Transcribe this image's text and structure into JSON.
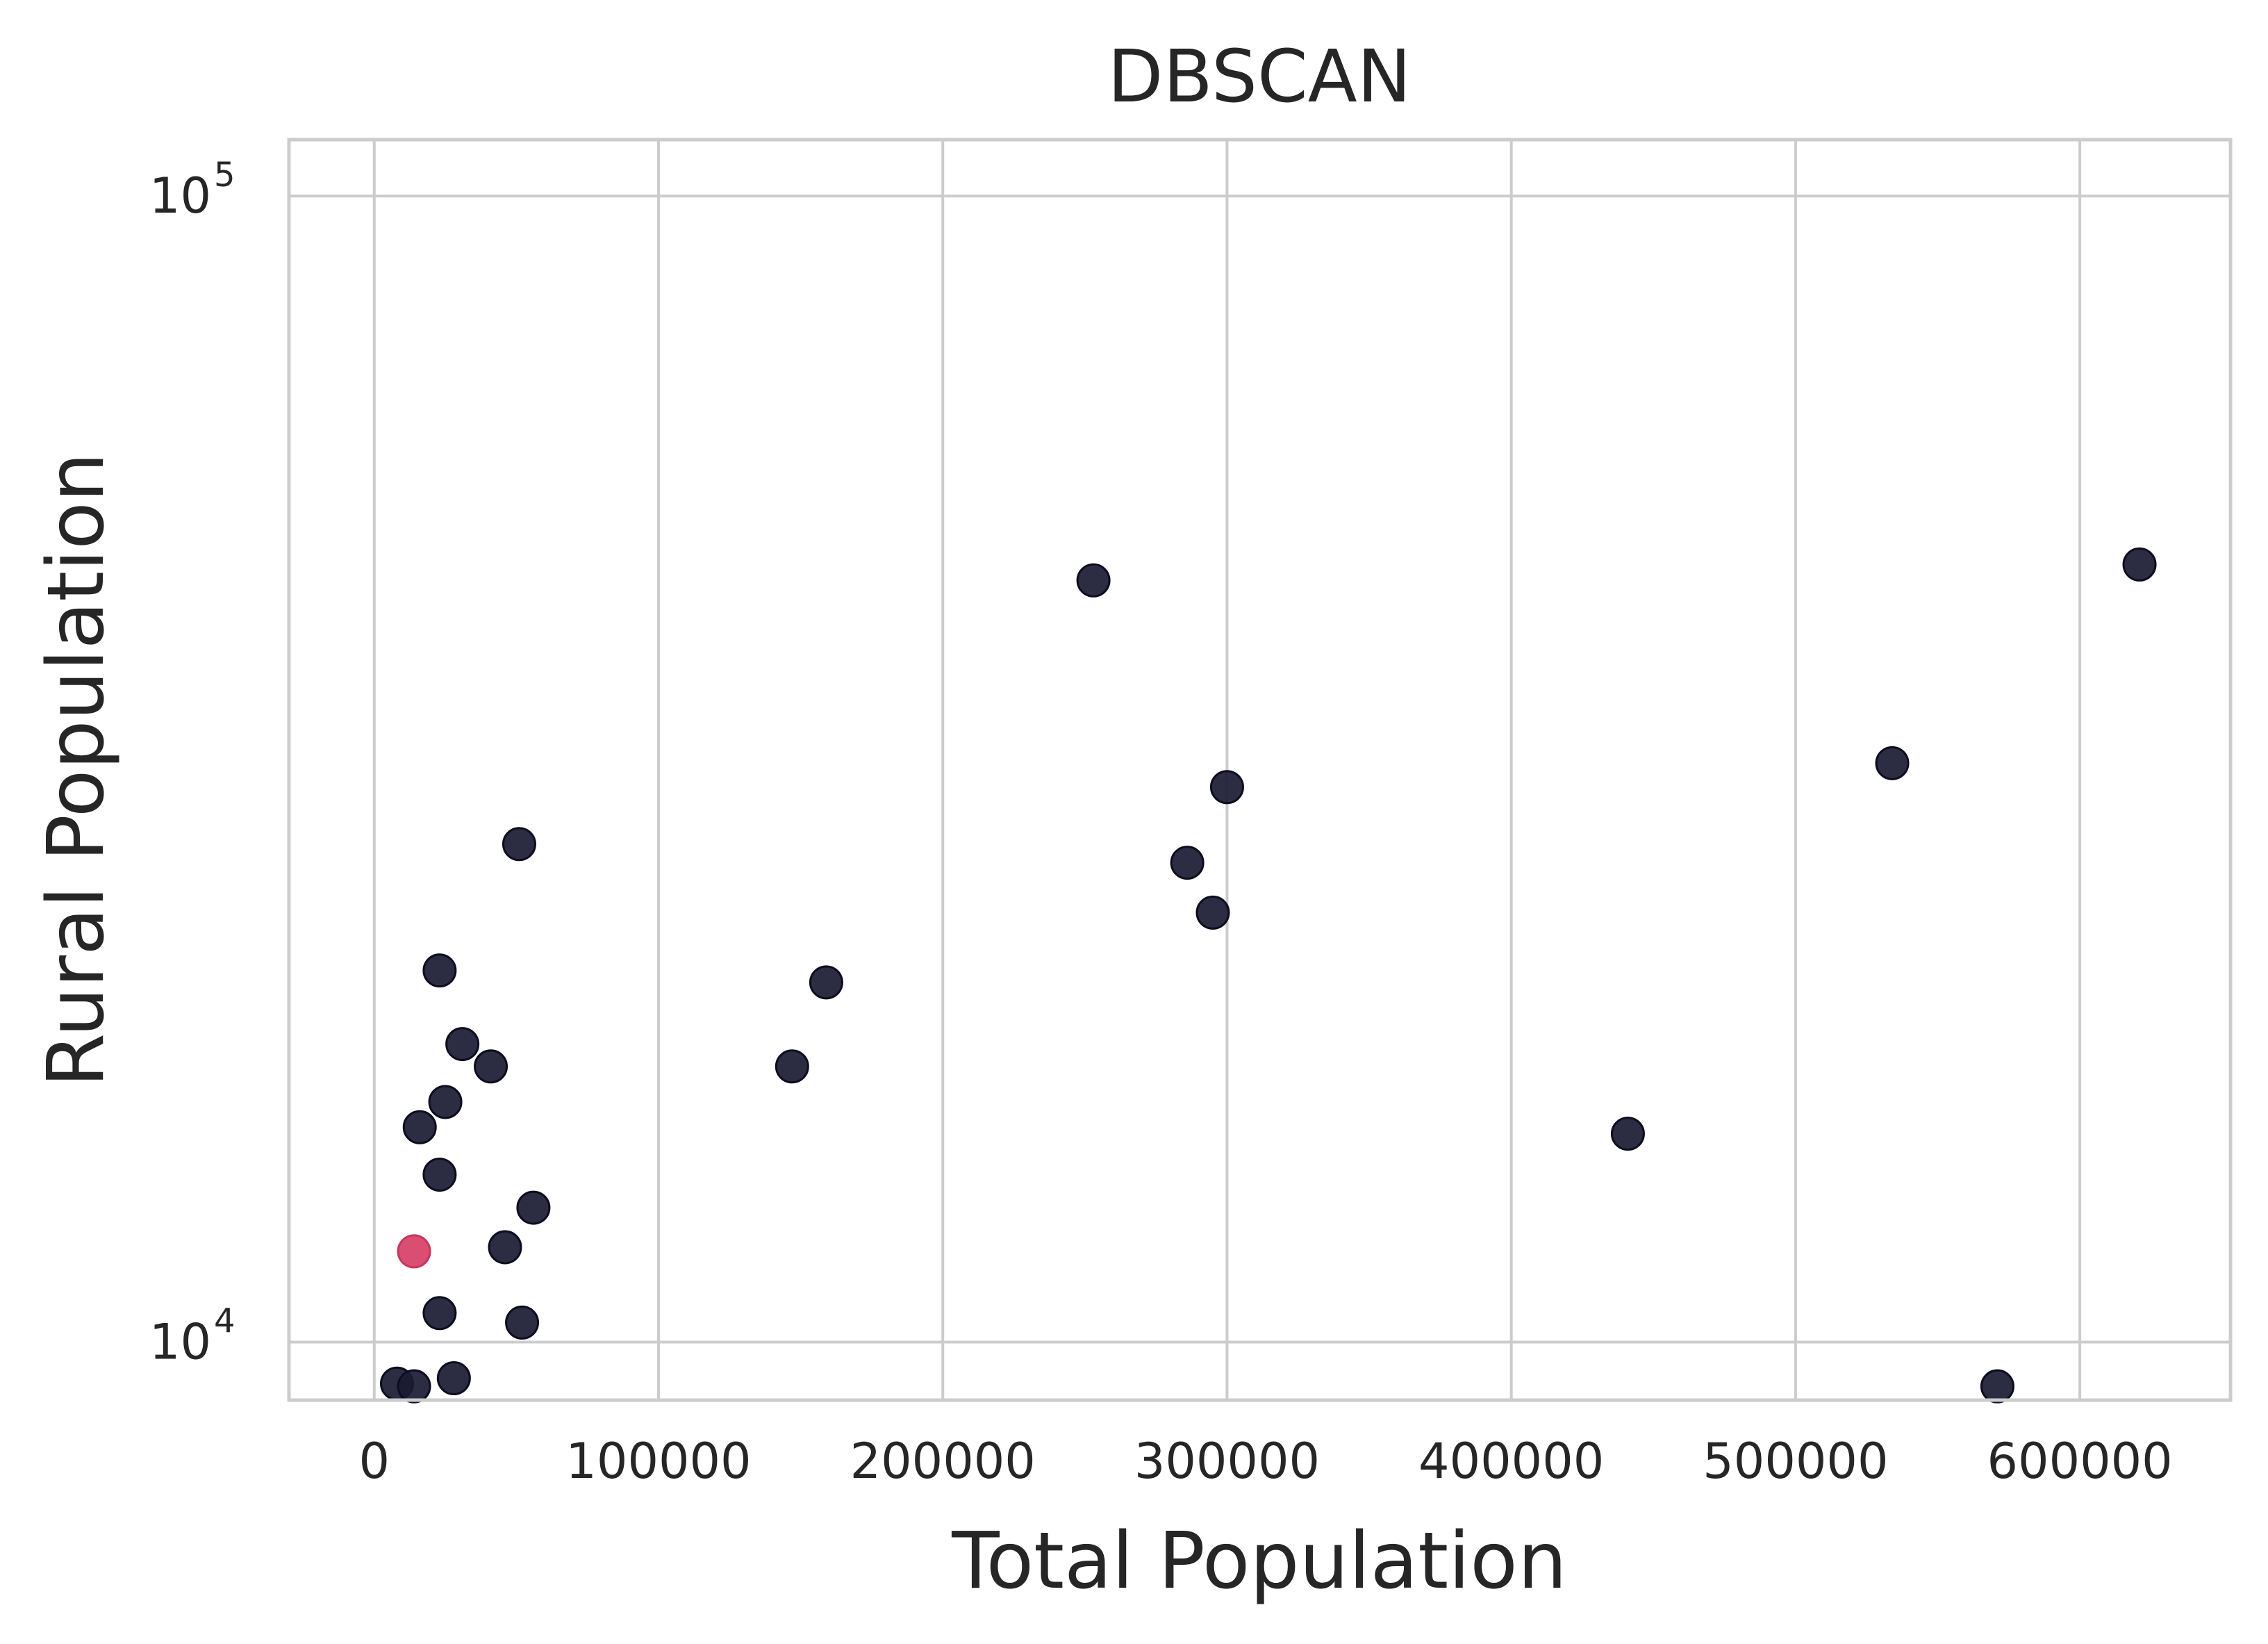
{
  "chart_data": {
    "type": "scatter",
    "title": "DBSCAN",
    "xlabel": "Total Population",
    "ylabel": "Rural Population",
    "x_scale": "linear",
    "y_scale": "log",
    "xlim": [
      -30000,
      653000
    ],
    "ylim": [
      8900,
      112000
    ],
    "xticks": [
      {
        "value": 0,
        "label": "0"
      },
      {
        "value": 100000,
        "label": "100000"
      },
      {
        "value": 200000,
        "label": "200000"
      },
      {
        "value": 300000,
        "label": "300000"
      },
      {
        "value": 400000,
        "label": "400000"
      },
      {
        "value": 500000,
        "label": "500000"
      },
      {
        "value": 600000,
        "label": "600000"
      }
    ],
    "yticks": [
      {
        "value": 10000,
        "base": "10",
        "exp": "4"
      },
      {
        "value": 100000,
        "base": "10",
        "exp": "5"
      }
    ],
    "grid": true,
    "colors": {
      "noise": "#1a1a33",
      "cluster_1": "#d9456c",
      "grid": "#cccccc"
    },
    "series": [
      {
        "color_key": "noise",
        "points": [
          {
            "x": 253000,
            "y": 46200
          },
          {
            "x": 621000,
            "y": 47700
          },
          {
            "x": 534000,
            "y": 32000
          },
          {
            "x": 300000,
            "y": 30500
          },
          {
            "x": 51000,
            "y": 27200
          },
          {
            "x": 286000,
            "y": 26200
          },
          {
            "x": 295000,
            "y": 23700
          },
          {
            "x": 23000,
            "y": 21100
          },
          {
            "x": 159000,
            "y": 20600
          },
          {
            "x": 31000,
            "y": 18200
          },
          {
            "x": 41000,
            "y": 17400
          },
          {
            "x": 147000,
            "y": 17400
          },
          {
            "x": 25000,
            "y": 16200
          },
          {
            "x": 16000,
            "y": 15400
          },
          {
            "x": 441000,
            "y": 15200
          },
          {
            "x": 23000,
            "y": 14000
          },
          {
            "x": 56000,
            "y": 13100
          },
          {
            "x": 46000,
            "y": 12100
          },
          {
            "x": 23000,
            "y": 10600
          },
          {
            "x": 52000,
            "y": 10400
          },
          {
            "x": 28000,
            "y": 9300
          },
          {
            "x": 8000,
            "y": 9200
          },
          {
            "x": 14000,
            "y": 9150
          },
          {
            "x": 571000,
            "y": 9150
          }
        ]
      },
      {
        "color_key": "cluster_1",
        "points": [
          {
            "x": 14000,
            "y": 12000
          }
        ]
      }
    ]
  }
}
